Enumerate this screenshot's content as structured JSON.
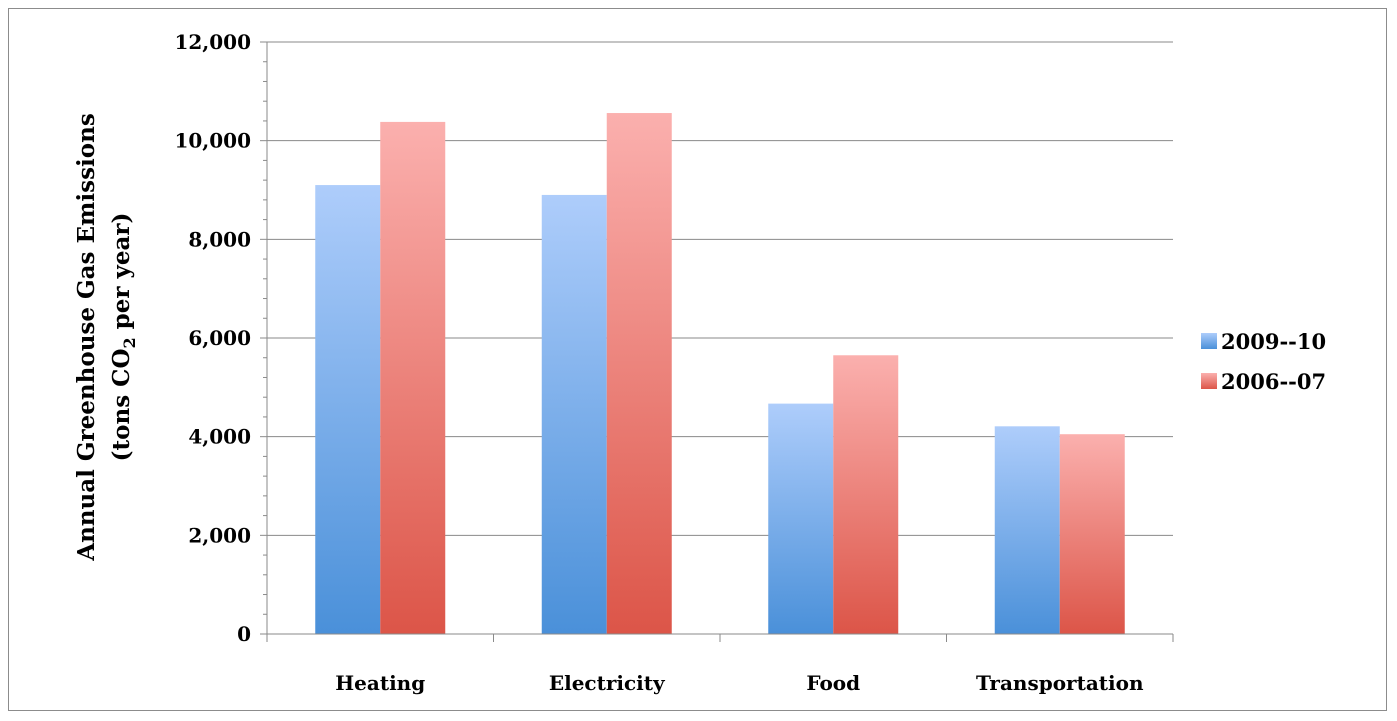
{
  "chart_data": {
    "type": "bar",
    "categories": [
      "Heating",
      "Electricity",
      "Food",
      "Transportation"
    ],
    "series": [
      {
        "name": "2009--10",
        "values": [
          9100,
          8900,
          4670,
          4210
        ],
        "color_top": "#aecdfb",
        "color_bottom": "#4a90d9"
      },
      {
        "name": "2006--07",
        "values": [
          10380,
          10560,
          5650,
          4050
        ],
        "color_top": "#fbb0ae",
        "color_bottom": "#dc5548"
      }
    ],
    "title": "",
    "xlabel": "",
    "ylabel_line1": "Annual Greenhouse Gas Emissions",
    "ylabel_line2_prefix": "(tons CO",
    "ylabel_line2_sub": "2",
    "ylabel_line2_suffix": "  per year)",
    "ylim": [
      0,
      12000
    ],
    "yticks": [
      "0",
      "2,000",
      "4,000",
      "6,000",
      "8,000",
      "10,000",
      "12,000"
    ],
    "ytick_values": [
      0,
      2000,
      4000,
      6000,
      8000,
      10000,
      12000
    ],
    "grid": true,
    "legend_position": "right"
  }
}
